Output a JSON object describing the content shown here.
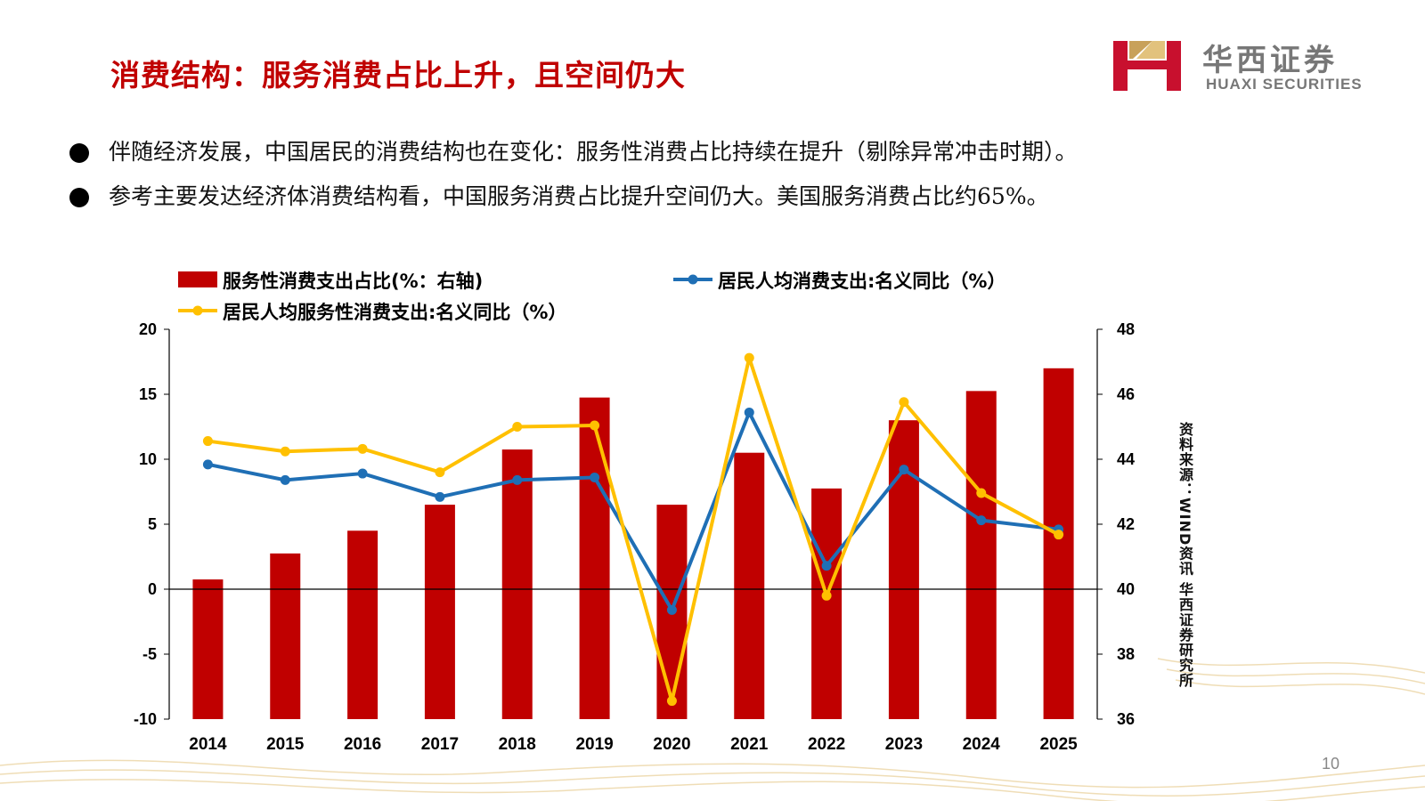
{
  "slide": {
    "title": "消费结构：服务消费占比上升，且空间仍大",
    "page_number": "10"
  },
  "logo": {
    "name_cn": "华西证券",
    "name_en": "HUAXI SECURITIES"
  },
  "bullets": [
    "伴随经济发展，中国居民的消费结构也在变化：服务性消费占比持续在提升（剔除异常冲击时期）。",
    "参考主要发达经济体消费结构看，中国服务消费占比提升空间仍大。美国服务消费占比约65%。"
  ],
  "source_note": "资料来源：WIND资讯 华西证券研究所",
  "colors": {
    "title_red": "#c00000",
    "bar_red": "#c00000",
    "line_blue": "#1f6fb5",
    "line_yellow": "#ffc000"
  },
  "chart_data": {
    "type": "bar",
    "categories": [
      "2014",
      "2015",
      "2016",
      "2017",
      "2018",
      "2019",
      "2020",
      "2021",
      "2022",
      "2023",
      "2024",
      "2025"
    ],
    "left_axis": {
      "range": [
        -10,
        20
      ],
      "ticks": [
        "20",
        "15",
        "10",
        "5",
        "0",
        "-5",
        "-10"
      ]
    },
    "right_axis": {
      "range": [
        36,
        48
      ],
      "ticks": [
        "48",
        "46",
        "44",
        "42",
        "40",
        "38",
        "36"
      ]
    },
    "series": [
      {
        "name": "服务性消费支出占比(%：右轴)",
        "type": "bar",
        "axis": "right",
        "values": [
          40.3,
          41.1,
          41.8,
          42.6,
          44.3,
          45.9,
          42.6,
          44.2,
          43.1,
          45.2,
          46.1,
          46.8
        ]
      },
      {
        "name": "居民人均消费支出:名义同比（%）",
        "type": "line",
        "axis": "left",
        "values": [
          9.6,
          8.4,
          8.9,
          7.1,
          8.4,
          8.6,
          -1.6,
          13.6,
          1.8,
          9.2,
          5.3,
          4.6
        ]
      },
      {
        "name": "居民人均服务性消费支出:名义同比（%）",
        "type": "line",
        "axis": "left",
        "values": [
          11.4,
          10.6,
          10.8,
          9.0,
          12.5,
          12.6,
          -8.6,
          17.8,
          -0.5,
          14.4,
          7.4,
          4.2
        ]
      }
    ],
    "legend_position": "top"
  }
}
